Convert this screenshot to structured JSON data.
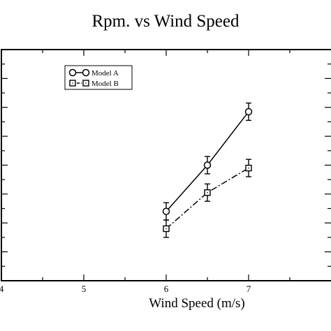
{
  "chart_data": {
    "type": "line",
    "title": "Rpm. vs Wind Speed",
    "xlabel": "Wind Speed (m/s)",
    "ylabel": "",
    "xlim": [
      4,
      8
    ],
    "ylim": [
      0,
      16
    ],
    "x_ticks": [
      4,
      5,
      6,
      7
    ],
    "x_tick_labels": [
      "4",
      "5",
      "6",
      "7"
    ],
    "grid": false,
    "legend_position": "top-left",
    "series": [
      {
        "name": "Model A",
        "marker": "circle",
        "line_style": "solid",
        "color": "#000000",
        "x": [
          6,
          6.5,
          7
        ],
        "y": [
          4.8,
          8.0,
          11.7
        ],
        "error": [
          0.6,
          0.6,
          0.6
        ]
      },
      {
        "name": "Model B",
        "marker": "square",
        "line_style": "dash-dot",
        "color": "#000000",
        "x": [
          6,
          6.5,
          7
        ],
        "y": [
          3.6,
          6.1,
          7.8
        ],
        "error": [
          0.6,
          0.6,
          0.6
        ]
      }
    ]
  }
}
